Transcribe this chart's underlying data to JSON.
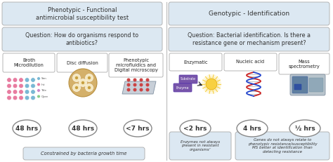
{
  "bg_color": "#ffffff",
  "left_title": "Phenotypic - Functional\nantimicrobial susceptibility test",
  "right_title": "Genotypic - Identification",
  "left_question": "Question: How do organisms respond to\nantibiotics?",
  "right_question": "Question: Bacterial identification. Is there a\nresistance gene or mechanism present?",
  "left_methods": [
    "Broth\nMicrodilution",
    "Disc diffusion",
    "Phenotypic\nmicrofluidics and\nDigital microscopy"
  ],
  "right_methods": [
    "Enzymatic",
    "Nucleic acid",
    "Mass\nspectrometry"
  ],
  "left_times": [
    "48 hrs",
    "48 hrs",
    "<7 hrs"
  ],
  "right_times": [
    "<2 hrs",
    "4 hrs",
    "½ hrs"
  ],
  "left_note": "Constrained by bacteria growth time",
  "right_note1": "Enzymes not always\npresent in resistant\norganisms’",
  "right_note2": "Genes do not always relate to\nphenotypic resistance/susceptibility\nMS better at identification than\ndetecting resistance",
  "header_bg": "#dce8f2",
  "method_box_bg": "#ffffff",
  "note_box_bg": "#dce8f2",
  "title_box_bg": "#dce8f2",
  "divider_color": "#bbbbbb"
}
